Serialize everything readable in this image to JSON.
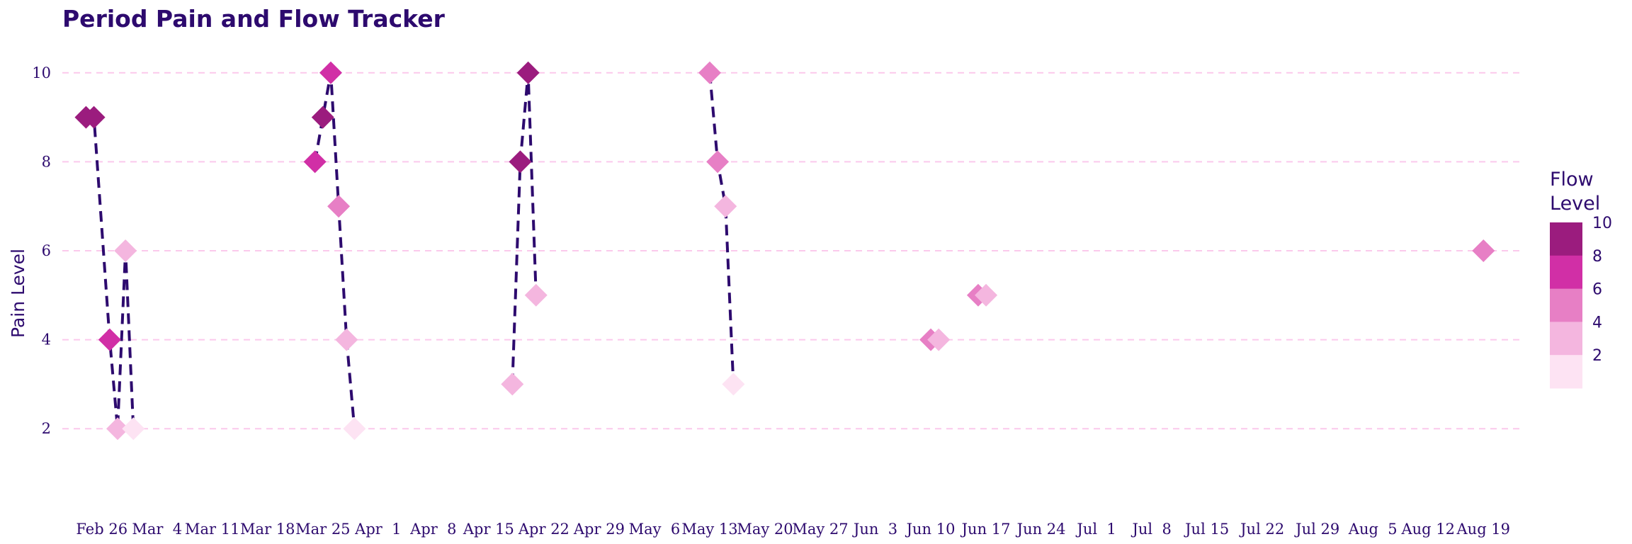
{
  "chart_data": {
    "type": "scatter",
    "title": "Period Pain and Flow Tracker",
    "xlabel": "",
    "ylabel": "Pain Level",
    "x_ticks": [
      "Feb 26",
      "Mar  4",
      "Mar 11",
      "Mar 18",
      "Mar 25",
      "Apr  1",
      "Apr  8",
      "Apr 15",
      "Apr 22",
      "Apr 29",
      "May  6",
      "May 13",
      "May 20",
      "May 27",
      "Jun  3",
      "Jun 10",
      "Jun 17",
      "Jun 24",
      "Jul  1",
      "Jul  8",
      "Jul 15",
      "Jul 22",
      "Jul 29",
      "Aug  5",
      "Aug 12",
      "Aug 19"
    ],
    "y_ticks": [
      2,
      4,
      6,
      8,
      10
    ],
    "xlim": [
      "2024-02-21",
      "2024-08-24"
    ],
    "ylim": [
      1,
      11
    ],
    "grid": "horizontal dashed",
    "legend": {
      "title": "Flow Level",
      "position": "right",
      "ticks": [
        10,
        8,
        6,
        4,
        2
      ],
      "bins": [
        {
          "from": 8,
          "to": 10,
          "color": "#9b1c7e"
        },
        {
          "from": 6,
          "to": 8,
          "color": "#d12fa6"
        },
        {
          "from": 4,
          "to": 6,
          "color": "#e77fc5"
        },
        {
          "from": 2,
          "to": 4,
          "color": "#f4b6df"
        },
        {
          "from": 0,
          "to": 2,
          "color": "#fde3f3"
        }
      ]
    },
    "line_style": {
      "color": "#2d0a6e",
      "dash": "dashed"
    },
    "cycles": [
      {
        "points": [
          {
            "date": "2024-02-24",
            "pain": 9,
            "flow": 10
          },
          {
            "date": "2024-02-25",
            "pain": 9,
            "flow": 10
          },
          {
            "date": "2024-02-27",
            "pain": 4,
            "flow": 7
          },
          {
            "date": "2024-02-28",
            "pain": 2,
            "flow": 4
          },
          {
            "date": "2024-02-29",
            "pain": 6,
            "flow": 3
          },
          {
            "date": "2024-03-01",
            "pain": 2,
            "flow": 2
          }
        ]
      },
      {
        "points": [
          {
            "date": "2024-03-24",
            "pain": 8,
            "flow": 8
          },
          {
            "date": "2024-03-25",
            "pain": 9,
            "flow": 9
          },
          {
            "date": "2024-03-26",
            "pain": 10,
            "flow": 7
          },
          {
            "date": "2024-03-27",
            "pain": 7,
            "flow": 6
          },
          {
            "date": "2024-03-28",
            "pain": 4,
            "flow": 4
          },
          {
            "date": "2024-03-29",
            "pain": 2,
            "flow": 2
          }
        ]
      },
      {
        "points": [
          {
            "date": "2024-04-18",
            "pain": 3,
            "flow": 4
          },
          {
            "date": "2024-04-19",
            "pain": 8,
            "flow": 9
          },
          {
            "date": "2024-04-20",
            "pain": 10,
            "flow": 9
          },
          {
            "date": "2024-04-21",
            "pain": 5,
            "flow": 4
          }
        ]
      },
      {
        "points": [
          {
            "date": "2024-05-13",
            "pain": 10,
            "flow": 6
          },
          {
            "date": "2024-05-14",
            "pain": 8,
            "flow": 6
          },
          {
            "date": "2024-05-15",
            "pain": 7,
            "flow": 4
          },
          {
            "date": "2024-05-16",
            "pain": 3,
            "flow": 2
          }
        ]
      },
      {
        "points": [
          {
            "date": "2024-06-10",
            "pain": 4,
            "flow": 6
          },
          {
            "date": "2024-06-11",
            "pain": 4,
            "flow": 4
          }
        ]
      },
      {
        "points": [
          {
            "date": "2024-06-16",
            "pain": 5,
            "flow": 6
          },
          {
            "date": "2024-06-17",
            "pain": 5,
            "flow": 4
          }
        ]
      },
      {
        "points": [
          {
            "date": "2024-08-19",
            "pain": 6,
            "flow": 6
          }
        ]
      }
    ]
  }
}
